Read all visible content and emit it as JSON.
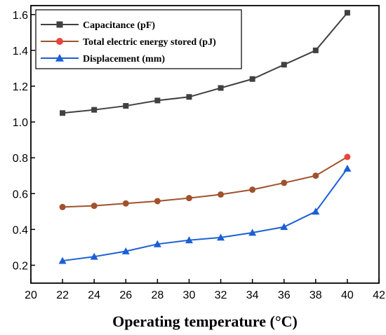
{
  "chart_data": {
    "type": "line",
    "xlabel": "Operating temperature (°C)",
    "ylabel": "",
    "xlim": [
      20,
      42
    ],
    "ylim": [
      0.1,
      1.65
    ],
    "x_ticks": [
      "20",
      "22",
      "24",
      "26",
      "28",
      "30",
      "32",
      "34",
      "36",
      "38",
      "40",
      "42"
    ],
    "y_ticks": [
      "0.2",
      "0.4",
      "0.6",
      "0.8",
      "1.0",
      "1.2",
      "1.4",
      "1.6"
    ],
    "grid": false,
    "legend_position": "top-left",
    "x": [
      22,
      24,
      26,
      28,
      30,
      32,
      34,
      36,
      38,
      40
    ],
    "series": [
      {
        "name": "Capacitance (pF)",
        "color": "#404040",
        "marker": "square",
        "values": [
          1.05,
          1.068,
          1.09,
          1.12,
          1.14,
          1.19,
          1.24,
          1.32,
          1.4,
          1.61
        ]
      },
      {
        "name": "Total electric energy stored (pJ)",
        "color": "#a0522d",
        "marker_color": "#e8453c",
        "marker": "circle",
        "values": [
          0.525,
          0.532,
          0.545,
          0.558,
          0.575,
          0.595,
          0.622,
          0.66,
          0.7,
          0.805
        ]
      },
      {
        "name": "Displacement (mm)",
        "color": "#1a5fd6",
        "marker": "triangle",
        "values": [
          0.225,
          0.248,
          0.278,
          0.318,
          0.34,
          0.355,
          0.382,
          0.414,
          0.5,
          0.74
        ]
      }
    ]
  }
}
